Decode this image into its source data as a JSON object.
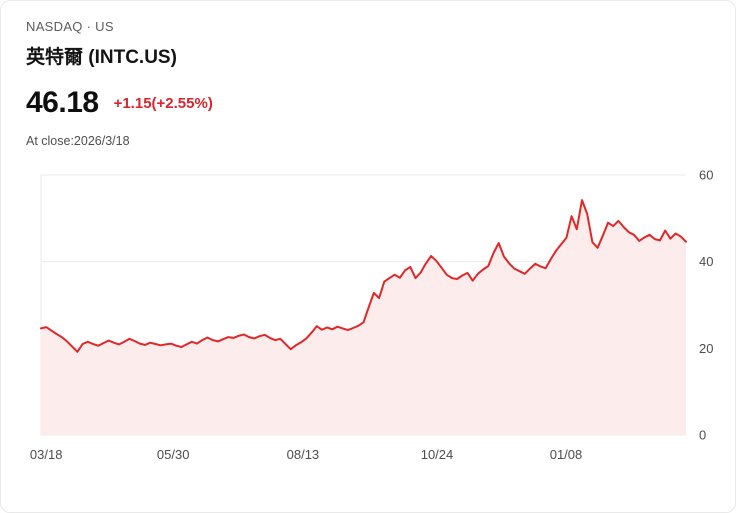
{
  "header": {
    "exchange": "NASDAQ · US",
    "title": "英特爾 (INTC.US)"
  },
  "quote": {
    "price": "46.18",
    "change": "+1.15(+2.55%)",
    "change_color": "#d9252e",
    "as_of": "At close:2026/3/18"
  },
  "chart_data": {
    "type": "area",
    "title": "INTC.US one-year price chart",
    "ylabel": "",
    "xlabel": "",
    "ylim": [
      0,
      60
    ],
    "y_ticks": [
      60,
      40,
      20,
      0
    ],
    "x_ticks": [
      {
        "label": "03/18",
        "pos": 0.008
      },
      {
        "label": "05/30",
        "pos": 0.205
      },
      {
        "label": "08/13",
        "pos": 0.406
      },
      {
        "label": "10/24",
        "pos": 0.614
      },
      {
        "label": "01/08",
        "pos": 0.814
      }
    ],
    "line_color": "#e02828",
    "fill_color": "#fdecec",
    "grid_color": "#ebebeb",
    "axis_text_color": "#4d4d4d",
    "grid": true,
    "legend_position": "none",
    "values": [
      24.6,
      24.9,
      24.1,
      23.3,
      22.6,
      21.6,
      20.4,
      19.2,
      21.0,
      21.5,
      21.0,
      20.6,
      21.2,
      21.8,
      21.3,
      20.9,
      21.5,
      22.2,
      21.7,
      21.1,
      20.8,
      21.3,
      21.0,
      20.7,
      20.9,
      21.1,
      20.6,
      20.3,
      20.9,
      21.5,
      21.1,
      21.9,
      22.5,
      21.9,
      21.6,
      22.1,
      22.6,
      22.4,
      22.9,
      23.2,
      22.6,
      22.3,
      22.8,
      23.1,
      22.4,
      21.9,
      22.2,
      21.0,
      19.8,
      20.7,
      21.4,
      22.3,
      23.6,
      25.1,
      24.3,
      24.8,
      24.4,
      25.0,
      24.6,
      24.2,
      24.7,
      25.2,
      26.0,
      29.5,
      32.8,
      31.6,
      35.4,
      36.2,
      37.0,
      36.3,
      38.0,
      38.8,
      36.2,
      37.5,
      39.6,
      41.3,
      40.2,
      38.6,
      37.0,
      36.2,
      36.0,
      36.8,
      37.4,
      35.6,
      37.2,
      38.2,
      39.0,
      42.0,
      44.3,
      41.2,
      39.6,
      38.4,
      37.8,
      37.2,
      38.4,
      39.5,
      38.9,
      38.5,
      40.6,
      42.5,
      44.0,
      45.5,
      50.5,
      47.5,
      54.2,
      51.0,
      44.5,
      43.2,
      46.0,
      49.0,
      48.2,
      49.4,
      48.0,
      46.8,
      46.2,
      44.8,
      45.6,
      46.2,
      45.2,
      44.9,
      47.2,
      45.3,
      46.5,
      45.8,
      44.6
    ]
  }
}
